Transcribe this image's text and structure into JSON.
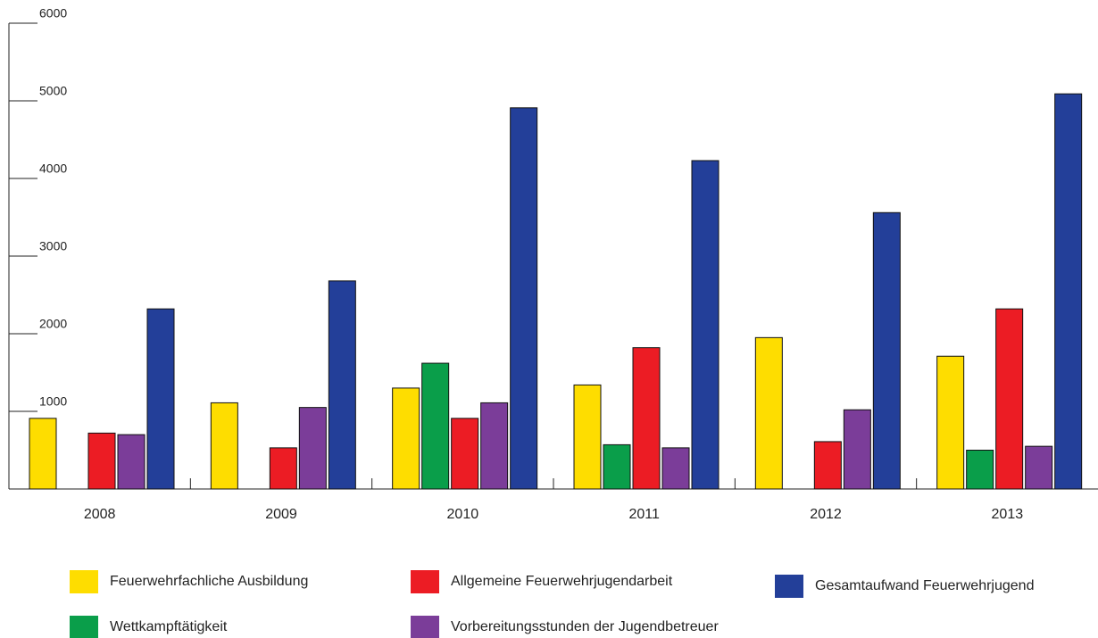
{
  "chart_data": {
    "type": "bar",
    "categories": [
      "2008",
      "2009",
      "2010",
      "2011",
      "2012",
      "2013"
    ],
    "series": [
      {
        "name": "Feuerwehrfachliche Ausbildung",
        "color": "#fedd00",
        "values": [
          910,
          1110,
          1300,
          1340,
          1950,
          1710
        ]
      },
      {
        "name": "Wettkampftätigkeit",
        "color": "#0a9e4a",
        "values": [
          null,
          null,
          1620,
          570,
          null,
          500
        ]
      },
      {
        "name": "Allgemeine Feuerwehrjugendarbeit",
        "color": "#ec1c24",
        "values": [
          720,
          530,
          910,
          1820,
          610,
          2320
        ]
      },
      {
        "name": "Vorbereitungsstunden der Jugendbetreuer",
        "color": "#7b3d99",
        "values": [
          700,
          1050,
          1110,
          530,
          1020,
          550
        ]
      },
      {
        "name": "Gesamtaufwand Feuerwehrjugend",
        "color": "#233f99",
        "values": [
          2320,
          2680,
          4910,
          4230,
          3560,
          5090
        ]
      }
    ],
    "ylim": [
      0,
      6000
    ],
    "yticks": [
      0,
      1000,
      2000,
      3000,
      4000,
      5000,
      6000
    ]
  }
}
